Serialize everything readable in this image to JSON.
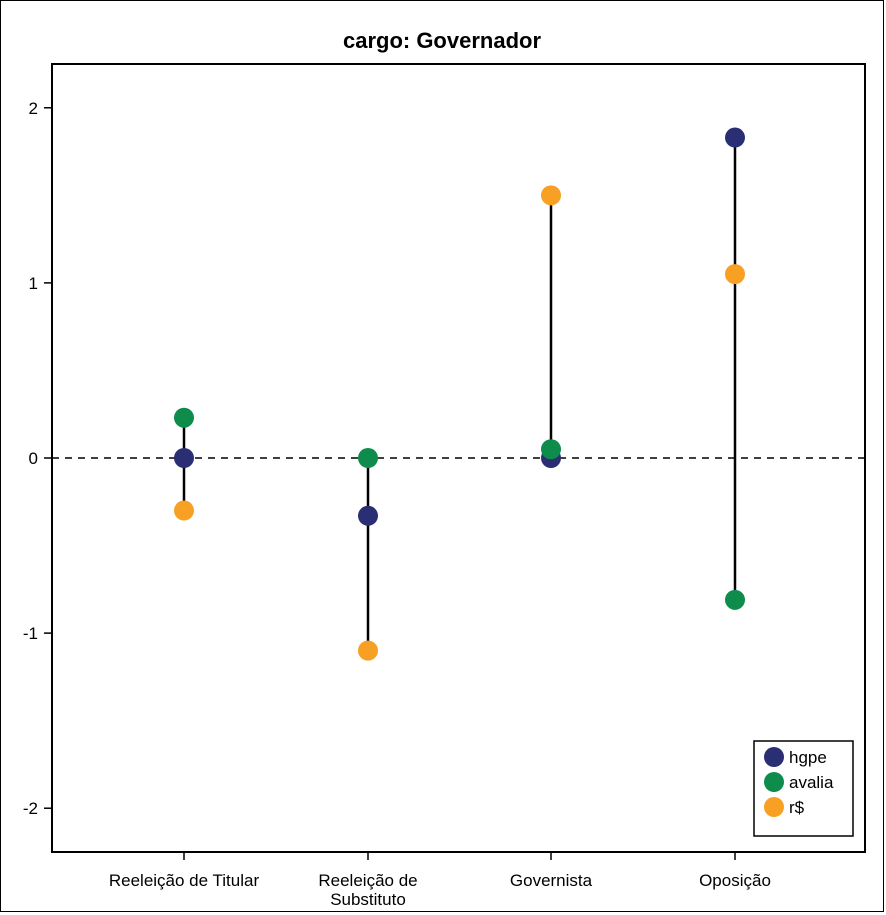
{
  "chart_data": {
    "type": "scatter",
    "title": "cargo: Governador",
    "xlabel": "",
    "ylabel": "",
    "categories": [
      "Reeleição de Titular",
      "Reeleição de Substituto",
      "Governista",
      "Oposição"
    ],
    "ylim": [
      -2.25,
      2.25
    ],
    "yticks": [
      -2,
      -1,
      0,
      1,
      2
    ],
    "ytick_labels": [
      "-2",
      "-1",
      "0",
      "1",
      "2"
    ],
    "reference_line": {
      "y": 0,
      "style": "dashed"
    },
    "connect_range_per_category": true,
    "grid": false,
    "legend_position": "bottom-right",
    "series": [
      {
        "name": "hgpe",
        "color": "#2a2e72",
        "values": [
          0.0,
          -0.33,
          0.0,
          1.83
        ]
      },
      {
        "name": "avalia",
        "color": "#0e8c4b",
        "values": [
          0.23,
          0.0,
          0.05,
          -0.81
        ]
      },
      {
        "name": "r$",
        "color": "#f7a023",
        "values": [
          -0.3,
          -1.1,
          1.5,
          1.05
        ]
      }
    ]
  }
}
